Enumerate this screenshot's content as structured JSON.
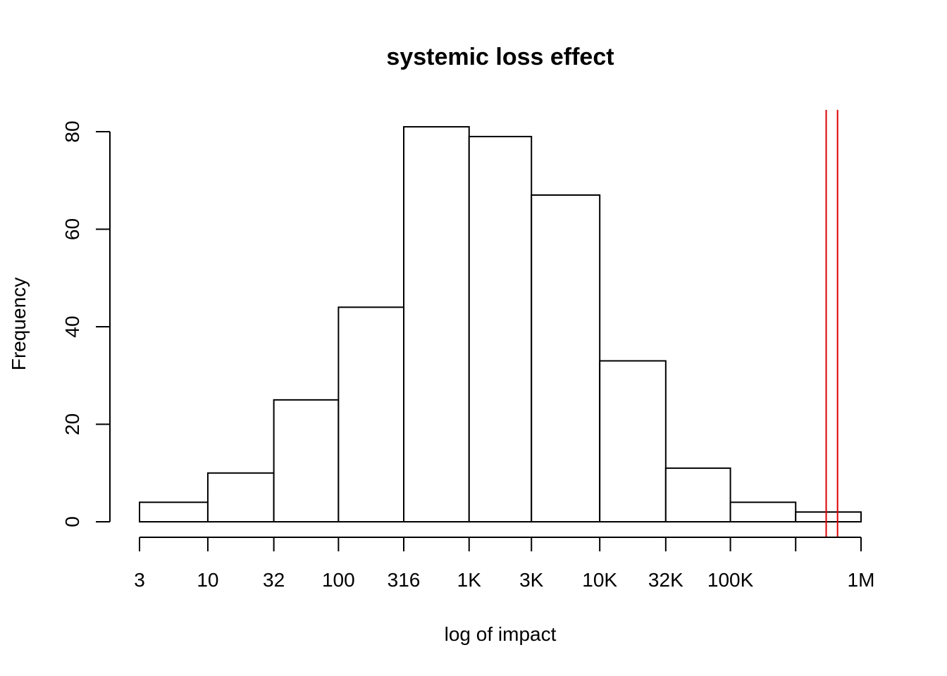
{
  "chart_data": {
    "type": "bar",
    "title": "systemic loss effect",
    "xlabel": "log of impact",
    "ylabel": "Frequency",
    "x_scale": "log10",
    "bin_edges": [
      3,
      10,
      32,
      100,
      316,
      1000,
      3000,
      10000,
      32000,
      100000,
      316000,
      1000000
    ],
    "values": [
      4,
      10,
      25,
      44,
      81,
      79,
      67,
      33,
      11,
      4,
      2
    ],
    "x_ticks": [
      {
        "value": 3,
        "label": "3"
      },
      {
        "value": 10,
        "label": "10"
      },
      {
        "value": 32,
        "label": "32"
      },
      {
        "value": 100,
        "label": "100"
      },
      {
        "value": 316,
        "label": "316"
      },
      {
        "value": 1000,
        "label": "1K"
      },
      {
        "value": 3000,
        "label": "3K"
      },
      {
        "value": 10000,
        "label": "10K"
      },
      {
        "value": 32000,
        "label": "32K"
      },
      {
        "value": 100000,
        "label": "100K"
      },
      {
        "value": 316000,
        "label": ""
      },
      {
        "value": 1000000,
        "label": "1M"
      }
    ],
    "y_ticks": [
      0,
      20,
      40,
      60,
      80
    ],
    "ylim": [
      0,
      80
    ],
    "xlim": [
      3,
      1000000
    ],
    "reference_lines": [
      {
        "x": 541000,
        "color": "#dd0000"
      },
      {
        "x": 661000,
        "color": "#dd0000"
      }
    ],
    "bar_fill": "#ffffff",
    "bar_stroke": "#000000",
    "grid": false,
    "legend": "none"
  }
}
